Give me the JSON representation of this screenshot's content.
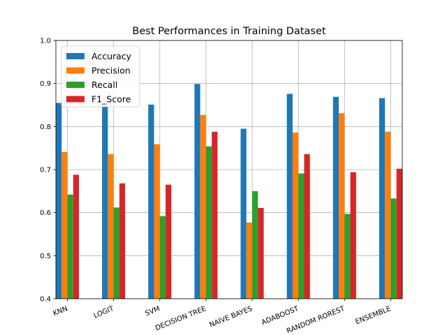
{
  "chart_data": {
    "type": "bar",
    "title": "Best Performances in Training Dataset",
    "xlabel": "",
    "ylabel": "",
    "ylim": [
      0.4,
      1.0
    ],
    "yticks": [
      "0.4",
      "0.5",
      "0.6",
      "0.7",
      "0.8",
      "0.9",
      "1.0"
    ],
    "grid": true,
    "legend_position": "top-left",
    "categories": [
      "KNN",
      "LOGIT",
      "SVM",
      "DECISION TREE",
      "NAIVE BAYES",
      "ADABOOST",
      "RANDOM ROREST",
      "ENSEMBLE"
    ],
    "series": [
      {
        "name": "Accuracy",
        "color": "#1f77b4",
        "values": [
          0.855,
          0.848,
          0.851,
          0.899,
          0.795,
          0.876,
          0.869,
          0.866
        ]
      },
      {
        "name": "Precision",
        "color": "#ff7f0e",
        "values": [
          0.741,
          0.736,
          0.759,
          0.827,
          0.577,
          0.786,
          0.831,
          0.788
        ]
      },
      {
        "name": "Recall",
        "color": "#2ca02c",
        "values": [
          0.642,
          0.612,
          0.592,
          0.754,
          0.65,
          0.691,
          0.597,
          0.633
        ]
      },
      {
        "name": "F1_Score",
        "color": "#d62728",
        "values": [
          0.688,
          0.668,
          0.665,
          0.788,
          0.611,
          0.736,
          0.694,
          0.702
        ]
      }
    ]
  }
}
